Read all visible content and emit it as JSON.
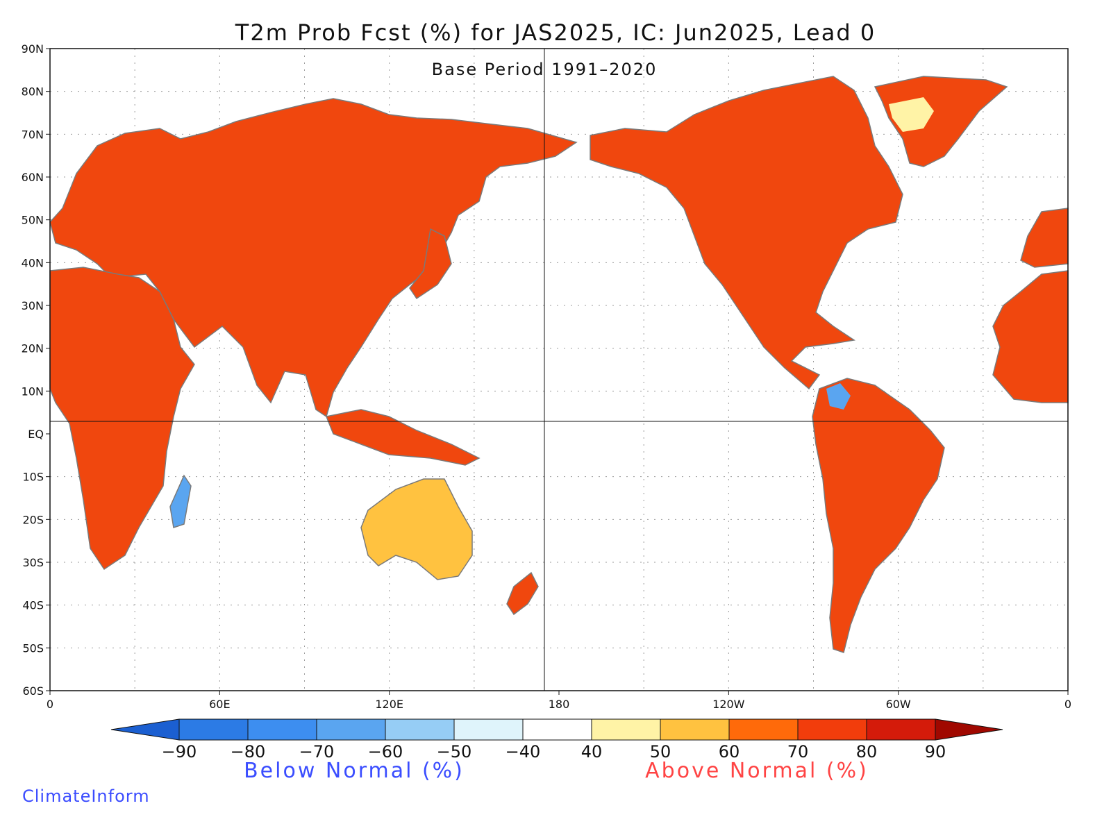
{
  "title": "T2m Prob Fcst (%) for JAS2025, IC: Jun2025, Lead 0",
  "subtitle": "Base Period 1991–2020",
  "credit": "ClimateInform",
  "axes": {
    "lat_ticks": [
      "90N",
      "80N",
      "70N",
      "60N",
      "50N",
      "40N",
      "30N",
      "20N",
      "10N",
      "EQ",
      "10S",
      "20S",
      "30S",
      "40S",
      "50S",
      "60S"
    ],
    "lon_ticks": [
      "0",
      "60E",
      "120E",
      "180",
      "120W",
      "60W",
      "0"
    ]
  },
  "legend": {
    "below_label": "Below Normal (%)",
    "above_label": "Above Normal (%)",
    "below_color": "#3a4dff",
    "above_color": "#ff4444",
    "tick_labels": [
      "−90",
      "−80",
      "−70",
      "−60",
      "−50",
      "−40",
      "40",
      "50",
      "60",
      "70",
      "80",
      "90"
    ],
    "bins": [
      {
        "range": "< -90",
        "color": "#1b5fd1"
      },
      {
        "range": "-90 to -80",
        "color": "#2c7be5"
      },
      {
        "range": "-80 to -70",
        "color": "#3d8ef0"
      },
      {
        "range": "-70 to -60",
        "color": "#5aa5f0"
      },
      {
        "range": "-60 to -50",
        "color": "#96cdf5"
      },
      {
        "range": "-50 to -40",
        "color": "#dff4fb"
      },
      {
        "range": "-40 to 40",
        "color": "#ffffff"
      },
      {
        "range": "40 to 50",
        "color": "#fff3a6"
      },
      {
        "range": "50 to 60",
        "color": "#ffc240"
      },
      {
        "range": "60 to 70",
        "color": "#ff6a0a"
      },
      {
        "range": "70 to 80",
        "color": "#f23d0c"
      },
      {
        "range": "80 to 90",
        "color": "#d41b0a"
      },
      {
        "range": "> 90",
        "color": "#a00800"
      }
    ]
  },
  "land_color": "#f0470e",
  "coast_color": "#7a7a7a"
}
